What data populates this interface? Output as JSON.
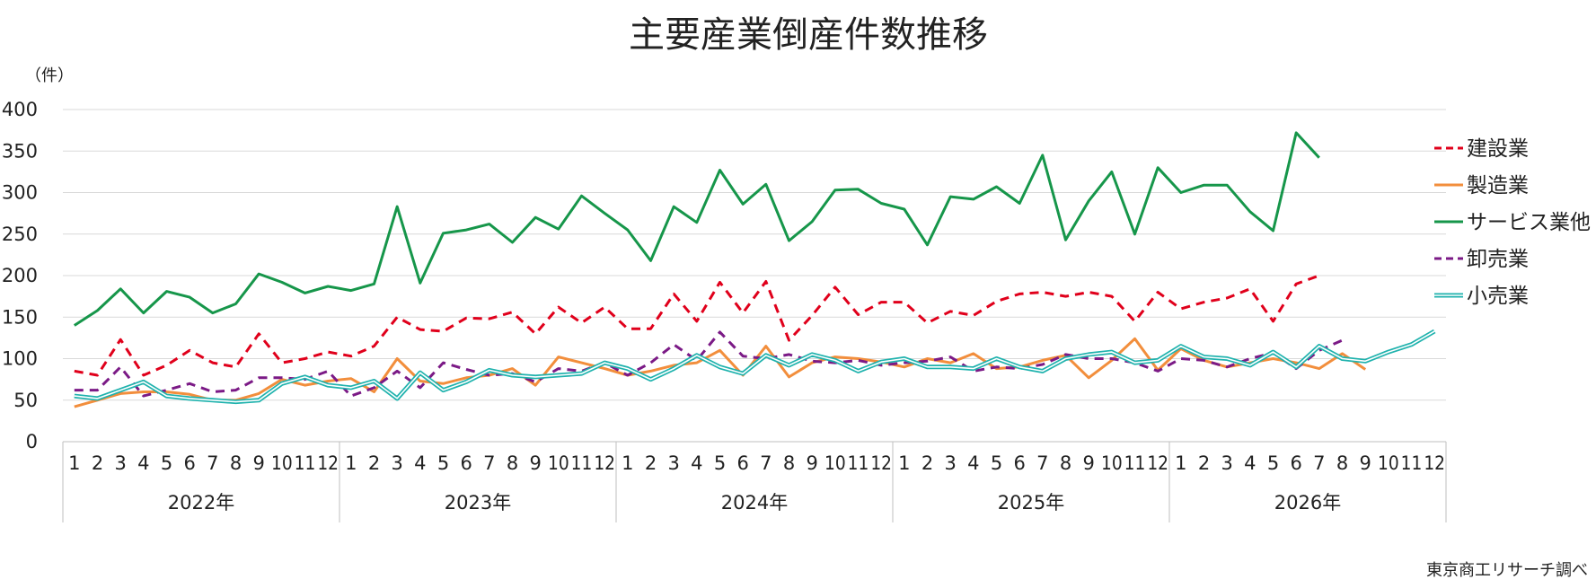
{
  "chart_data": {
    "type": "line",
    "title": "主要産業倒産件数推移",
    "unit_label": "（件）",
    "source": "東京商工リサーチ調べ",
    "ylim": [
      0,
      400
    ],
    "yticks": [
      "0",
      "50",
      "100",
      "150",
      "200",
      "250",
      "300",
      "350",
      "400"
    ],
    "month_labels": [
      "1",
      "2",
      "3",
      "4",
      "5",
      "6",
      "7",
      "8",
      "9",
      "10",
      "11",
      "12"
    ],
    "years": [
      "2022年",
      "2023年",
      "2024年",
      "2025年",
      "2026年"
    ],
    "legend_position": "right",
    "grid": true,
    "series": [
      {
        "name": "建設業",
        "color": "#e0001b",
        "style": "dashed",
        "values": [
          85,
          80,
          123,
          80,
          92,
          110,
          95,
          90,
          130,
          95,
          100,
          108,
          103,
          115,
          150,
          135,
          133,
          149,
          148,
          156,
          130,
          162,
          143,
          162,
          136,
          136,
          178,
          145,
          192,
          155,
          193,
          122,
          152,
          186,
          153,
          168,
          168,
          143,
          157,
          152,
          169,
          178,
          180,
          175,
          180,
          175,
          145,
          180,
          160,
          168,
          173,
          184,
          145,
          190,
          200
        ]
      },
      {
        "name": "製造業",
        "color": "#f28e3c",
        "style": "solid",
        "values": [
          42,
          50,
          58,
          60,
          60,
          57,
          50,
          50,
          58,
          75,
          68,
          73,
          76,
          60,
          100,
          73,
          70,
          77,
          80,
          88,
          68,
          102,
          95,
          88,
          80,
          85,
          92,
          95,
          110,
          80,
          115,
          78,
          95,
          102,
          100,
          96,
          90,
          100,
          95,
          106,
          88,
          90,
          98,
          104,
          77,
          98,
          124,
          86,
          112,
          98,
          90,
          95,
          100,
          95,
          88,
          106,
          87
        ]
      },
      {
        "name": "サービス業他",
        "color": "#16964a",
        "style": "solid",
        "values": [
          140,
          158,
          184,
          155,
          181,
          174,
          155,
          166,
          202,
          192,
          179,
          187,
          182,
          190,
          283,
          191,
          251,
          255,
          262,
          240,
          270,
          256,
          296,
          275,
          255,
          218,
          283,
          264,
          327,
          286,
          310,
          242,
          265,
          303,
          304,
          287,
          280,
          237,
          295,
          292,
          307,
          287,
          345,
          243,
          290,
          325,
          250,
          330,
          300,
          309,
          309,
          277,
          254,
          372,
          342
        ]
      },
      {
        "name": "卸売業",
        "color": "#7b1a86",
        "style": "dashed",
        "values": [
          62,
          62,
          90,
          55,
          62,
          70,
          60,
          62,
          77,
          77,
          75,
          85,
          55,
          65,
          85,
          65,
          95,
          87,
          80,
          82,
          72,
          88,
          85,
          95,
          80,
          95,
          117,
          98,
          132,
          103,
          100,
          105,
          97,
          95,
          98,
          92,
          95,
          97,
          102,
          85,
          90,
          88,
          93,
          105,
          100,
          100,
          95,
          85,
          100,
          98,
          90,
          100,
          107,
          88,
          110,
          122
        ]
      },
      {
        "name": "小売業",
        "color": "#1fb2ad",
        "style": "double",
        "values": [
          55,
          52,
          62,
          72,
          55,
          52,
          50,
          48,
          50,
          70,
          78,
          68,
          65,
          73,
          52,
          83,
          62,
          72,
          86,
          80,
          78,
          80,
          82,
          95,
          88,
          75,
          88,
          104,
          90,
          82,
          104,
          92,
          105,
          98,
          85,
          96,
          100,
          90,
          90,
          88,
          100,
          90,
          85,
          100,
          105,
          108,
          95,
          98,
          115,
          102,
          100,
          92,
          108,
          90,
          115,
          100,
          97,
          108,
          117,
          133
        ]
      }
    ]
  }
}
